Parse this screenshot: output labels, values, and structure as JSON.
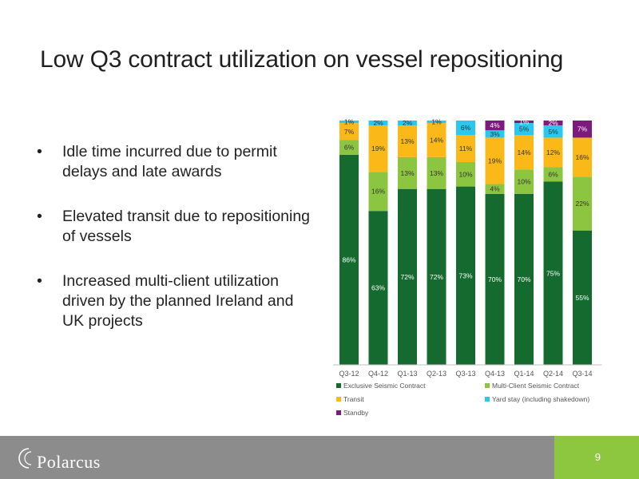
{
  "slide": {
    "title": "Low Q3 contract utilization on vessel repositioning",
    "page_number": "9",
    "logo_text": "Polarcus"
  },
  "bullets": [
    "Idle time incurred due to permit delays and late awards",
    "Elevated transit due to repositioning of vessels",
    "Increased multi-client utilization driven by the planned Ireland and UK projects"
  ],
  "colors": {
    "exclusive": "#156b2f",
    "multi_client": "#8cc540",
    "transit": "#fbb919",
    "yard_stay": "#2ac8ee",
    "standby": "#7d1a7e",
    "footer": "#8c8c8c",
    "page_box": "#8dc63f"
  },
  "chart_data": {
    "type": "bar",
    "stacked": true,
    "percent_stacked": true,
    "categories": [
      "Q3-12",
      "Q4-12",
      "Q1-13",
      "Q2-13",
      "Q3-13",
      "Q4-13",
      "Q1-14",
      "Q2-14",
      "Q3-14"
    ],
    "series": [
      {
        "name": "Exclusive Seismic Contract",
        "color": "#156b2f",
        "values": [
          86,
          63,
          72,
          72,
          73,
          70,
          70,
          75,
          55
        ]
      },
      {
        "name": "Multi-Client Seismic Contract",
        "color": "#8cc540",
        "values": [
          6,
          16,
          13,
          13,
          10,
          4,
          10,
          6,
          22
        ]
      },
      {
        "name": "Transit",
        "color": "#fbb919",
        "values": [
          7,
          19,
          13,
          14,
          11,
          19,
          14,
          12,
          16
        ]
      },
      {
        "name": "Yard stay (including shakedown)",
        "color": "#2ac8ee",
        "values": [
          1,
          2,
          2,
          1,
          6,
          3,
          5,
          5,
          0
        ]
      },
      {
        "name": "Standby",
        "color": "#7d1a7e",
        "values": [
          0,
          0,
          0,
          0,
          0,
          4,
          1,
          2,
          7
        ]
      }
    ],
    "labels_shown": [
      [
        true,
        true,
        true,
        true,
        false
      ],
      [
        true,
        true,
        true,
        true,
        false
      ],
      [
        true,
        true,
        true,
        true,
        false
      ],
      [
        true,
        true,
        true,
        true,
        false
      ],
      [
        true,
        true,
        true,
        true,
        false
      ],
      [
        true,
        true,
        true,
        true,
        true
      ],
      [
        true,
        true,
        true,
        true,
        true
      ],
      [
        true,
        true,
        true,
        true,
        true
      ],
      [
        true,
        true,
        true,
        false,
        true
      ]
    ],
    "ylim": [
      0,
      100
    ],
    "xlabel": "",
    "ylabel": "",
    "grid": false,
    "legend_position": "bottom"
  }
}
